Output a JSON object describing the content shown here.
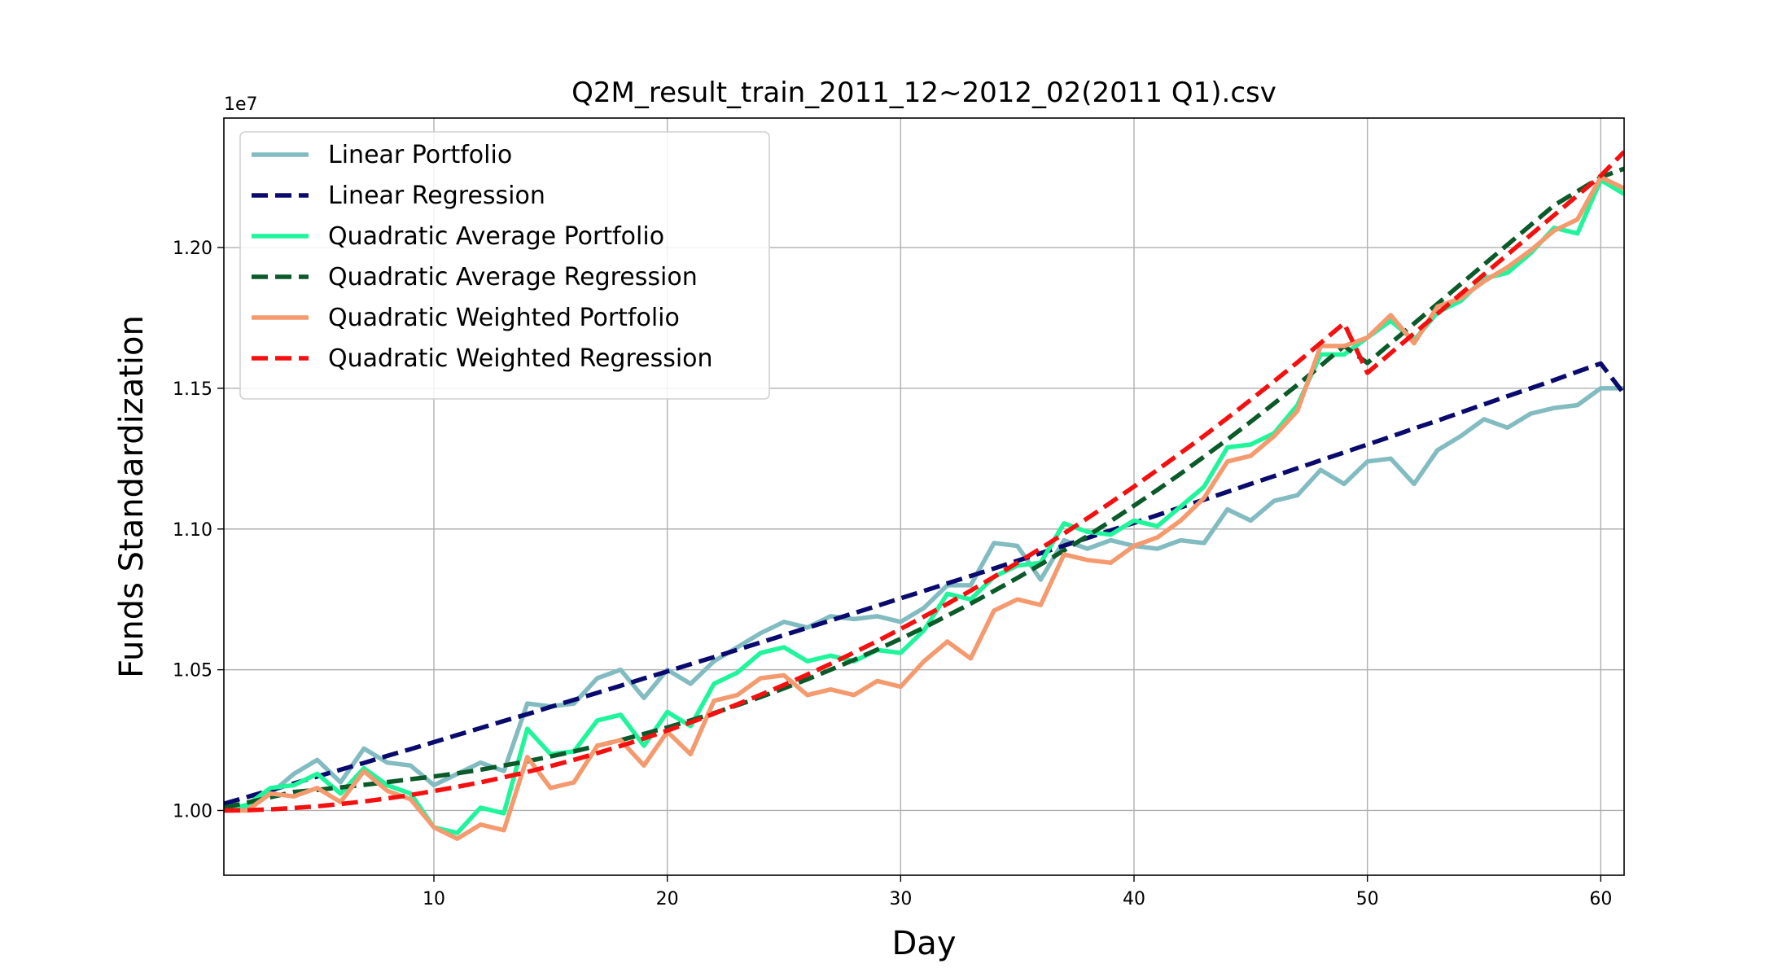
{
  "chart_data": {
    "type": "line",
    "title": "Q2M_result_train_2011_12~2012_02(2011 Q1).csv",
    "xlabel": "Day",
    "ylabel": "Funds Standardization",
    "y_offset_label": "1e7",
    "xlim": [
      1,
      61
    ],
    "ylim": [
      0.977,
      1.246
    ],
    "xticks": [
      10,
      20,
      30,
      40,
      50,
      60
    ],
    "xtick_labels": [
      "10",
      "20",
      "30",
      "40",
      "50",
      "60"
    ],
    "yticks": [
      1.0,
      1.05,
      1.1,
      1.15,
      1.2
    ],
    "ytick_labels": [
      "1.00",
      "1.05",
      "1.10",
      "1.15",
      "1.20"
    ],
    "grid": true,
    "legend_position": "upper-left",
    "x": [
      1,
      2,
      3,
      4,
      5,
      6,
      7,
      8,
      9,
      10,
      11,
      12,
      13,
      14,
      15,
      16,
      17,
      18,
      19,
      20,
      21,
      22,
      23,
      24,
      25,
      26,
      27,
      28,
      29,
      30,
      31,
      32,
      33,
      34,
      35,
      36,
      37,
      38,
      39,
      40,
      41,
      42,
      43,
      44,
      45,
      46,
      47,
      48,
      49,
      50,
      51,
      52,
      53,
      54,
      55,
      56,
      57,
      58,
      59,
      60,
      61
    ],
    "series": [
      {
        "name": "Linear Portfolio",
        "color": "#82bcc1",
        "style": "solid",
        "values": [
          1.0,
          1.001,
          1.006,
          1.013,
          1.018,
          1.01,
          1.022,
          1.017,
          1.016,
          1.009,
          1.013,
          1.017,
          1.014,
          1.038,
          1.037,
          1.038,
          1.047,
          1.05,
          1.04,
          1.05,
          1.045,
          1.053,
          1.058,
          1.063,
          1.067,
          1.065,
          1.069,
          1.068,
          1.069,
          1.067,
          1.072,
          1.08,
          1.08,
          1.095,
          1.094,
          1.082,
          1.096,
          1.093,
          1.096,
          1.094,
          1.093,
          1.096,
          1.095,
          1.107,
          1.103,
          1.11,
          1.112,
          1.121,
          1.116,
          1.124,
          1.125,
          1.116,
          1.128,
          1.133,
          1.139,
          1.136,
          1.141,
          1.143,
          1.144,
          1.15,
          1.15
        ]
      },
      {
        "name": "Linear Regression",
        "color": "#0a0a6e",
        "style": "dashed",
        "values": [
          1.0024,
          1.0048,
          1.0072,
          1.0096,
          1.0121,
          1.0145,
          1.0169,
          1.0194,
          1.0218,
          1.0243,
          1.0268,
          1.0293,
          1.0318,
          1.0342,
          1.0368,
          1.0393,
          1.0418,
          1.0443,
          1.0469,
          1.0494,
          1.052,
          1.0545,
          1.0571,
          1.0597,
          1.0623,
          1.0649,
          1.0675,
          1.0701,
          1.0727,
          1.0754,
          1.078,
          1.0807,
          1.0833,
          1.086,
          1.0887,
          1.0914,
          1.0941,
          1.0968,
          1.0995,
          1.1022,
          1.1049,
          1.1077,
          1.1104,
          1.1132,
          1.116,
          1.1188,
          1.1216,
          1.1244,
          1.1272,
          1.13,
          1.1328,
          1.1357,
          1.1385,
          1.1414,
          1.1443,
          1.1472,
          1.15,
          1.1529,
          1.1559,
          1.1588,
          1.148
        ]
      },
      {
        "name": "Quadratic Average Portfolio",
        "color": "#1ff59b",
        "style": "solid",
        "values": [
          1.0,
          1.002,
          1.008,
          1.009,
          1.013,
          1.006,
          1.015,
          1.009,
          1.006,
          0.994,
          0.992,
          1.001,
          0.999,
          1.029,
          1.02,
          1.021,
          1.032,
          1.034,
          1.023,
          1.035,
          1.03,
          1.045,
          1.049,
          1.056,
          1.058,
          1.053,
          1.055,
          1.053,
          1.057,
          1.056,
          1.064,
          1.077,
          1.075,
          1.083,
          1.087,
          1.088,
          1.102,
          1.099,
          1.098,
          1.103,
          1.101,
          1.108,
          1.115,
          1.129,
          1.13,
          1.134,
          1.144,
          1.162,
          1.162,
          1.168,
          1.174,
          1.167,
          1.177,
          1.181,
          1.189,
          1.191,
          1.198,
          1.207,
          1.205,
          1.224,
          1.219
        ]
      },
      {
        "name": "Quadratic Average Regression",
        "color": "#0b5a2a",
        "style": "dashed",
        "values": [
          1.001,
          1.0028,
          1.0047,
          1.0066,
          1.0073,
          1.0082,
          1.0091,
          1.0101,
          1.0111,
          1.0121,
          1.0132,
          1.0145,
          1.016,
          1.0175,
          1.0192,
          1.021,
          1.023,
          1.025,
          1.0272,
          1.0295,
          1.032,
          1.0346,
          1.0374,
          1.0403,
          1.0434,
          1.0466,
          1.05,
          1.0535,
          1.0572,
          1.061,
          1.065,
          1.0692,
          1.0735,
          1.078,
          1.0826,
          1.0874,
          1.0924,
          1.0975,
          1.1028,
          1.1083,
          1.1139,
          1.1197,
          1.1257,
          1.1318,
          1.1381,
          1.1446,
          1.1512,
          1.158,
          1.165,
          1.159,
          1.166,
          1.173,
          1.18,
          1.187,
          1.194,
          1.201,
          1.208,
          1.215,
          1.22,
          1.225,
          1.228
        ]
      },
      {
        "name": "Quadratic Weighted Portfolio",
        "color": "#f59a6e",
        "style": "solid",
        "values": [
          1.0,
          1.0,
          1.006,
          1.005,
          1.008,
          1.003,
          1.014,
          1.007,
          1.004,
          0.994,
          0.99,
          0.995,
          0.993,
          1.019,
          1.008,
          1.01,
          1.023,
          1.025,
          1.016,
          1.028,
          1.02,
          1.039,
          1.041,
          1.047,
          1.048,
          1.041,
          1.043,
          1.041,
          1.046,
          1.044,
          1.053,
          1.06,
          1.054,
          1.071,
          1.075,
          1.073,
          1.091,
          1.089,
          1.088,
          1.094,
          1.097,
          1.103,
          1.111,
          1.124,
          1.126,
          1.133,
          1.142,
          1.165,
          1.165,
          1.168,
          1.176,
          1.166,
          1.179,
          1.182,
          1.188,
          1.193,
          1.199,
          1.206,
          1.21,
          1.225,
          1.221
        ]
      },
      {
        "name": "Quadratic Weighted Regression",
        "color": "#f51010",
        "style": "dashed",
        "values": [
          1.0,
          1.0001,
          1.0004,
          1.0009,
          1.0015,
          1.0023,
          1.0032,
          1.0043,
          1.0055,
          1.0069,
          1.0084,
          1.01,
          1.0118,
          1.0137,
          1.0158,
          1.018,
          1.0204,
          1.0229,
          1.0256,
          1.0284,
          1.0313,
          1.0344,
          1.0377,
          1.0411,
          1.0446,
          1.0483,
          1.0521,
          1.0561,
          1.0602,
          1.0645,
          1.0689,
          1.0734,
          1.0781,
          1.083,
          1.088,
          1.0931,
          1.0984,
          1.1038,
          1.1094,
          1.1151,
          1.121,
          1.127,
          1.1331,
          1.1394,
          1.1459,
          1.1525,
          1.1592,
          1.1661,
          1.1731,
          1.1555,
          1.1625,
          1.1695,
          1.1765,
          1.1835,
          1.1905,
          1.1975,
          1.2045,
          1.2115,
          1.2185,
          1.2255,
          1.234
        ]
      }
    ]
  }
}
